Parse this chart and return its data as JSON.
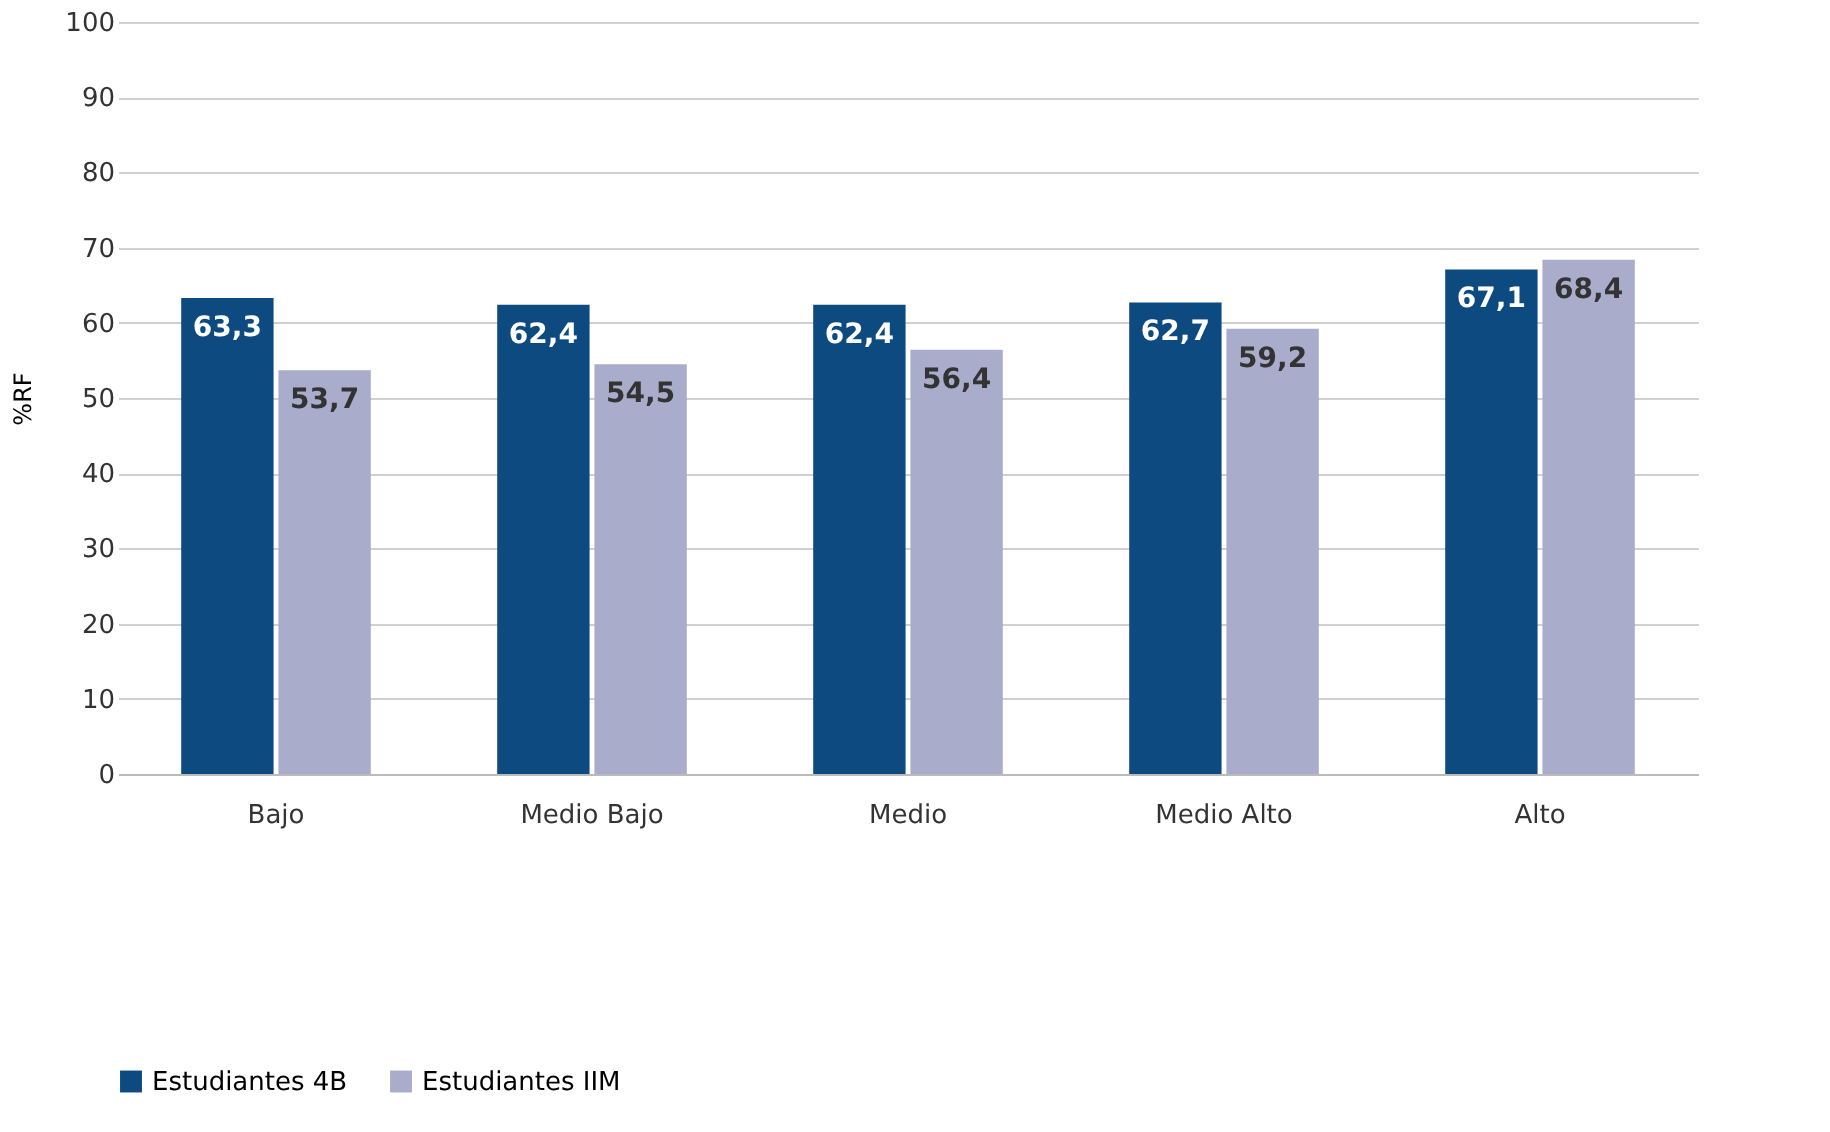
{
  "chart_data": {
    "type": "bar",
    "ylabel": "%RF",
    "categories": [
      "Bajo",
      "Medio Bajo",
      "Medio",
      "Medio Alto",
      "Alto"
    ],
    "series": [
      {
        "name": "Estudiantes 4B",
        "color": "#0d4a7f",
        "values": [
          63.3,
          62.4,
          62.4,
          62.7,
          67.1
        ],
        "value_labels": [
          "63,3",
          "62,4",
          "62,4",
          "62,7",
          "67,1"
        ]
      },
      {
        "name": "Estudiantes IIM",
        "color": "#a9adcb",
        "values": [
          53.7,
          54.5,
          56.4,
          59.2,
          68.4
        ],
        "value_labels": [
          "53,7",
          "54,5",
          "56,4",
          "59,2",
          "68,4"
        ]
      }
    ],
    "ylim": [
      0,
      100
    ],
    "yticks": [
      0,
      10,
      20,
      30,
      40,
      50,
      60,
      70,
      80,
      90,
      100
    ],
    "grid": "y",
    "legend": "bottom"
  }
}
